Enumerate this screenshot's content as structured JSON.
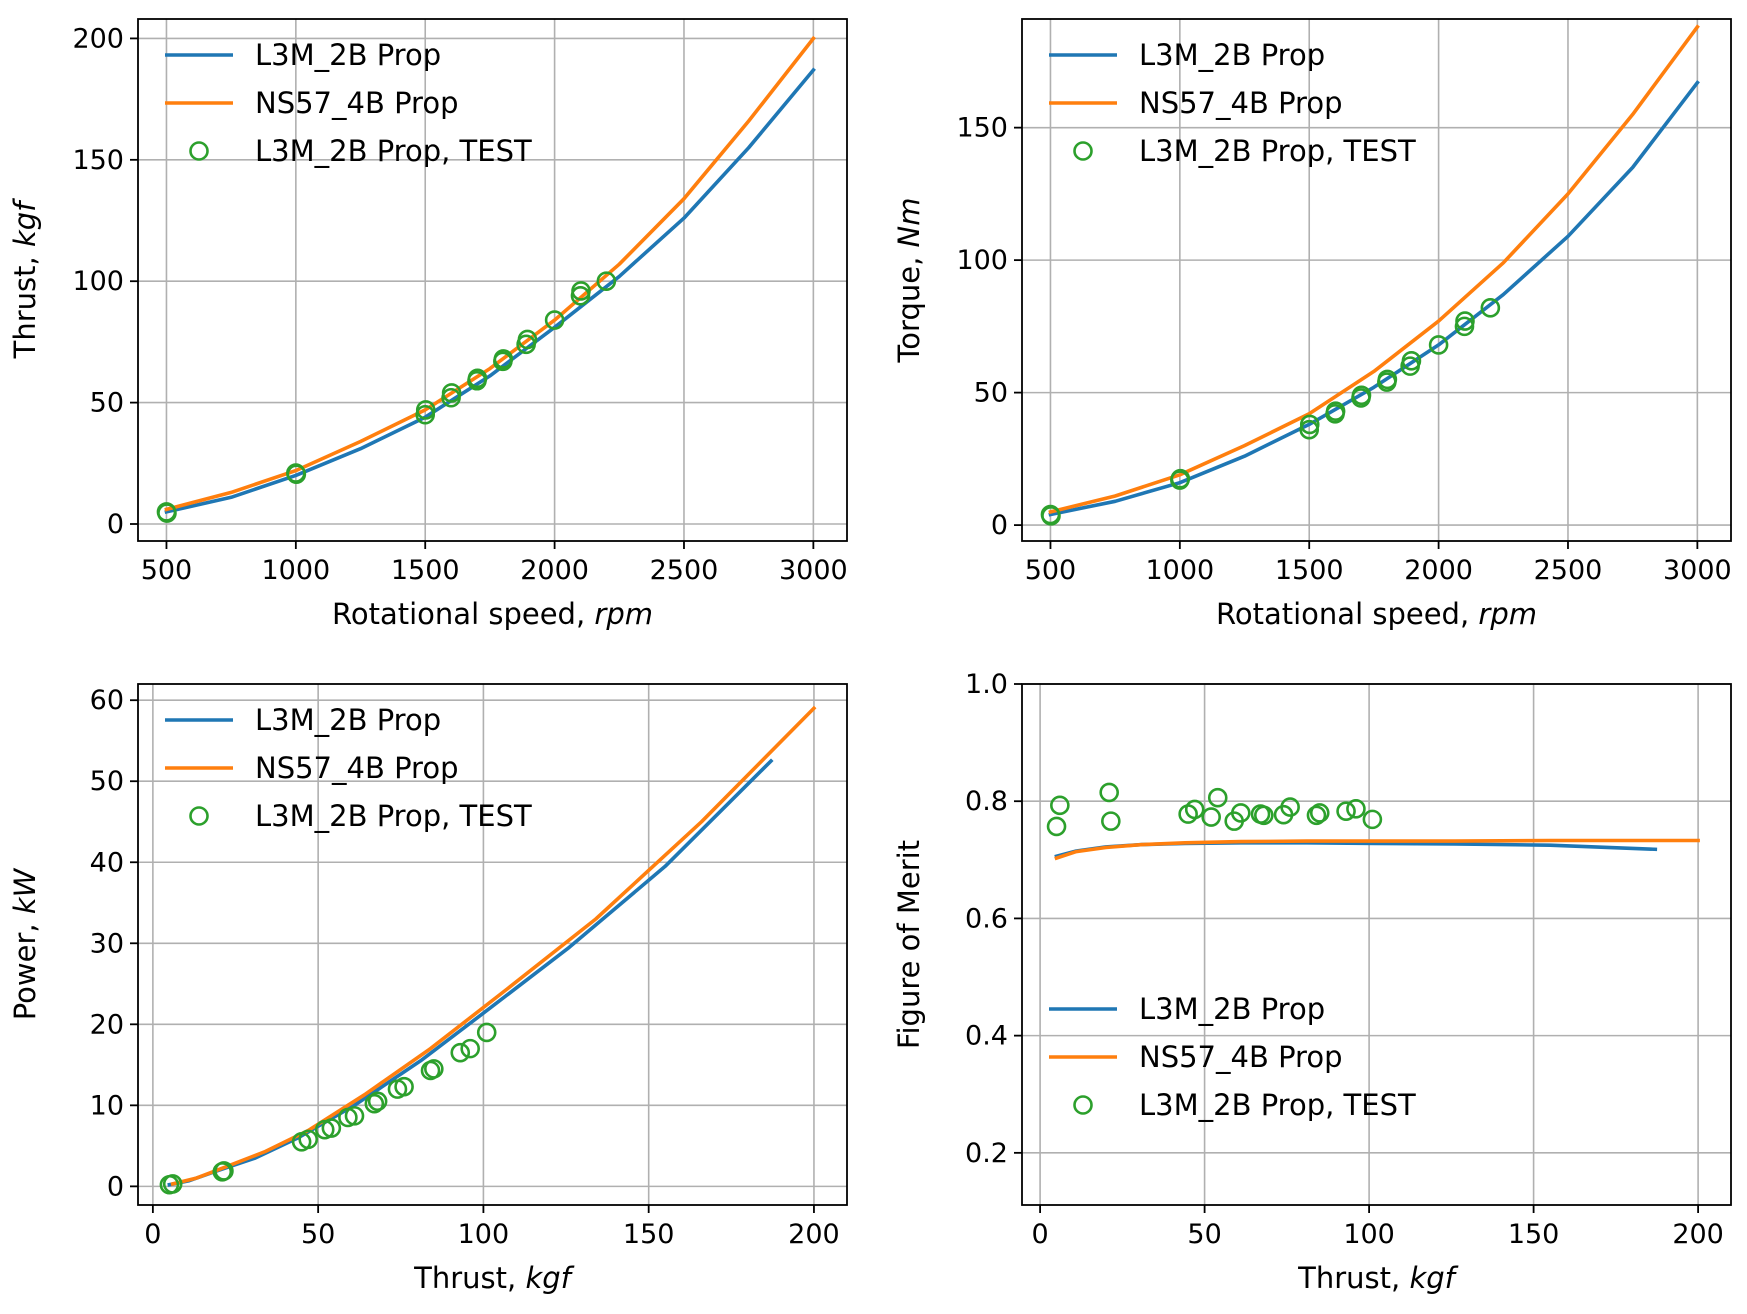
{
  "colors": {
    "blue": "#1f77b4",
    "orange": "#ff7f0e",
    "green": "#2ca02c"
  },
  "chart_data": [
    {
      "type": "line",
      "xlabel": "Rotational speed, ",
      "xlabel_unit": "rpm",
      "ylabel": "Thrust, ",
      "ylabel_unit": "kgf",
      "xlim": [
        390,
        3130
      ],
      "ylim": [
        -7,
        208
      ],
      "xticks": [
        500,
        1000,
        1500,
        2000,
        2500,
        3000
      ],
      "yticks": [
        0,
        50,
        100,
        150,
        200
      ],
      "legend": "top-left",
      "series": [
        {
          "name": "L3M_2B Prop",
          "color": "#1f77b4",
          "kind": "line",
          "x": [
            500,
            750,
            1000,
            1250,
            1500,
            1750,
            2000,
            2250,
            2500,
            2750,
            3000
          ],
          "y": [
            5,
            11,
            20,
            31,
            44,
            61,
            81,
            102,
            126,
            155,
            187
          ]
        },
        {
          "name": "NS57_4B Prop",
          "color": "#ff7f0e",
          "kind": "line",
          "x": [
            500,
            750,
            1000,
            1250,
            1500,
            1750,
            2000,
            2250,
            2500,
            2750,
            3000
          ],
          "y": [
            6,
            13,
            22,
            34,
            47,
            64,
            84,
            107,
            134,
            166,
            200
          ]
        },
        {
          "name": "L3M_2B Prop, TEST",
          "color": "#2ca02c",
          "kind": "scatter",
          "x": [
            500,
            502,
            1000,
            1002,
            1500,
            1502,
            1600,
            1602,
            1700,
            1702,
            1800,
            1802,
            1890,
            1895,
            2000,
            2100,
            2102,
            2200
          ],
          "y": [
            5,
            4.5,
            21,
            20.5,
            45,
            47,
            52,
            54,
            59,
            60,
            67,
            68,
            74,
            76,
            84,
            94,
            96,
            100
          ]
        }
      ]
    },
    {
      "type": "line",
      "xlabel": "Rotational speed, ",
      "xlabel_unit": "rpm",
      "ylabel": "Torque, ",
      "ylabel_unit": "Nm",
      "xlim": [
        390,
        3130
      ],
      "ylim": [
        -6,
        191
      ],
      "xticks": [
        500,
        1000,
        1500,
        2000,
        2500,
        3000
      ],
      "yticks": [
        0,
        50,
        100,
        150
      ],
      "legend": "top-left",
      "series": [
        {
          "name": "L3M_2B Prop",
          "color": "#1f77b4",
          "kind": "line",
          "x": [
            500,
            750,
            1000,
            1250,
            1500,
            1750,
            2000,
            2250,
            2500,
            2750,
            3000
          ],
          "y": [
            4,
            9,
            16,
            26,
            38,
            52,
            68,
            87,
            109,
            135,
            167
          ]
        },
        {
          "name": "NS57_4B Prop",
          "color": "#ff7f0e",
          "kind": "line",
          "x": [
            500,
            750,
            1000,
            1250,
            1500,
            1750,
            2000,
            2250,
            2500,
            2750,
            3000
          ],
          "y": [
            5,
            11,
            19,
            30,
            42,
            58,
            77,
            99,
            125,
            155,
            188
          ]
        },
        {
          "name": "L3M_2B Prop, TEST",
          "color": "#2ca02c",
          "kind": "scatter",
          "x": [
            500,
            502,
            1000,
            1002,
            1500,
            1502,
            1600,
            1602,
            1700,
            1702,
            1800,
            1802,
            1890,
            1895,
            2000,
            2100,
            2102,
            2200
          ],
          "y": [
            4,
            3.5,
            17,
            17.5,
            36,
            38,
            42,
            43,
            48,
            49,
            54,
            55,
            60,
            62,
            68,
            75,
            77,
            82
          ]
        }
      ]
    },
    {
      "type": "line",
      "xlabel": "Thrust, ",
      "xlabel_unit": "kgf",
      "ylabel": "Power, ",
      "ylabel_unit": "kW",
      "xlim": [
        -4.5,
        210
      ],
      "ylim": [
        -2.3,
        62
      ],
      "xticks": [
        0,
        50,
        100,
        150,
        200
      ],
      "yticks": [
        0,
        10,
        20,
        30,
        40,
        50,
        60
      ],
      "legend": "top-left",
      "series": [
        {
          "name": "L3M_2B Prop",
          "color": "#1f77b4",
          "kind": "line",
          "x": [
            5,
            11,
            20,
            31,
            44,
            61,
            81,
            102,
            126,
            155,
            187
          ],
          "y": [
            0.2,
            0.7,
            2.0,
            3.5,
            6.0,
            10.0,
            15.5,
            22.0,
            29.5,
            39.5,
            52.5
          ]
        },
        {
          "name": "NS57_4B Prop",
          "color": "#ff7f0e",
          "kind": "line",
          "x": [
            6,
            13,
            22,
            34,
            47,
            64,
            84,
            107,
            134,
            166,
            200
          ],
          "y": [
            0.3,
            1.0,
            2.4,
            4.3,
            6.9,
            11.3,
            17.0,
            24.3,
            33.0,
            45.0,
            59.0
          ]
        },
        {
          "name": "L3M_2B Prop, TEST",
          "color": "#2ca02c",
          "kind": "scatter",
          "x": [
            5,
            6,
            21,
            21.5,
            45,
            47,
            52,
            54,
            59,
            61,
            67,
            68,
            74,
            76,
            84,
            85,
            93,
            96,
            101
          ],
          "y": [
            0.2,
            0.3,
            1.8,
            1.9,
            5.5,
            5.8,
            7.0,
            7.2,
            8.5,
            8.7,
            10.2,
            10.5,
            12.0,
            12.3,
            14.3,
            14.5,
            16.5,
            17.0,
            19.0
          ]
        }
      ]
    },
    {
      "type": "line",
      "xlabel": "Thrust, ",
      "xlabel_unit": "kgf",
      "ylabel": "Figure of Merit",
      "ylabel_unit": "",
      "xlim": [
        -5.5,
        210
      ],
      "ylim": [
        0.111,
        1.0
      ],
      "xticks": [
        0,
        50,
        100,
        150,
        200
      ],
      "yticks": [
        0.2,
        0.4,
        0.6,
        0.8,
        1.0
      ],
      "ytick_format": "1dp",
      "legend": "bottom-left",
      "series": [
        {
          "name": "L3M_2B Prop",
          "color": "#1f77b4",
          "kind": "line",
          "x": [
            5,
            11,
            20,
            31,
            44,
            61,
            81,
            102,
            126,
            155,
            187
          ],
          "y": [
            0.706,
            0.715,
            0.722,
            0.726,
            0.728,
            0.729,
            0.729,
            0.728,
            0.727,
            0.725,
            0.718
          ]
        },
        {
          "name": "NS57_4B Prop",
          "color": "#ff7f0e",
          "kind": "line",
          "x": [
            5,
            11,
            20,
            31,
            44,
            61,
            81,
            102,
            126,
            155,
            200
          ],
          "y": [
            0.703,
            0.714,
            0.721,
            0.726,
            0.729,
            0.731,
            0.732,
            0.732,
            0.732,
            0.733,
            0.733
          ]
        },
        {
          "name": "L3M_2B Prop, TEST",
          "color": "#2ca02c",
          "kind": "scatter",
          "x": [
            5,
            6,
            21,
            21.5,
            45,
            47,
            52,
            54,
            59,
            61,
            67,
            68,
            74,
            76,
            84,
            85,
            93,
            96,
            101
          ],
          "y": [
            0.757,
            0.793,
            0.815,
            0.766,
            0.778,
            0.786,
            0.773,
            0.806,
            0.766,
            0.78,
            0.778,
            0.776,
            0.777,
            0.79,
            0.776,
            0.78,
            0.783,
            0.787,
            0.769
          ]
        }
      ]
    }
  ]
}
